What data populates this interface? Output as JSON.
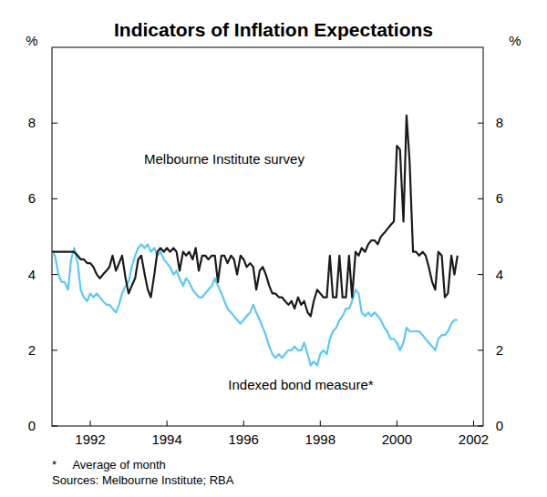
{
  "chart_data": {
    "type": "line",
    "title": "Indicators of Inflation Expectations",
    "ylabel": "%",
    "y2label": "%",
    "x": [
      1991.5,
      1991.58,
      1991.67,
      1991.75,
      1991.83,
      1991.92,
      1992,
      1992.08,
      1992.17,
      1992.25,
      1992.33,
      1992.42,
      1992.5,
      1992.58,
      1992.67,
      1992.75,
      1992.83,
      1992.92,
      1993,
      1993.08,
      1993.17,
      1993.25,
      1993.33,
      1993.42,
      1993.5,
      1993.58,
      1993.67,
      1993.75,
      1993.83,
      1993.92,
      1994,
      1994.08,
      1994.17,
      1994.25,
      1994.33,
      1994.42,
      1994.5,
      1994.58,
      1994.67,
      1994.75,
      1994.83,
      1994.92,
      1995,
      1995.08,
      1995.17,
      1995.25,
      1995.33,
      1995.42,
      1995.5,
      1995.58,
      1995.67,
      1995.75,
      1995.83,
      1995.92,
      1996,
      1996.08,
      1996.17,
      1996.25,
      1996.33,
      1996.42,
      1996.5,
      1996.58,
      1996.67,
      1996.75,
      1996.83,
      1996.92,
      1997,
      1997.08,
      1997.17,
      1997.25,
      1997.33,
      1997.42,
      1997.5,
      1997.58,
      1997.67,
      1997.75,
      1997.83,
      1997.92,
      1998,
      1998.08,
      1998.17,
      1998.25,
      1998.33,
      1998.42,
      1998.5,
      1998.58,
      1998.67,
      1998.75,
      1998.83,
      1998.92,
      1999,
      1999.08,
      1999.17,
      1999.25,
      1999.33,
      1999.42,
      1999.5,
      1999.58,
      1999.67,
      1999.75,
      1999.83,
      1999.92,
      2000,
      2000.08,
      2000.17,
      2000.25,
      2000.33,
      2000.42,
      2000.5,
      2000.58,
      2000.67,
      2000.75,
      2000.83,
      2000.92,
      2001,
      2001.08,
      2001.17,
      2001.25,
      2001.33,
      2001.42,
      2001.5,
      2001.58,
      2001.67,
      2001.75,
      2001.83,
      2001.92,
      2002,
      2002.08
    ],
    "series": [
      {
        "name": "Melbourne Institute survey",
        "color": "#1a1a1a",
        "values": [
          4.6,
          4.6,
          4.6,
          4.6,
          4.6,
          4.6,
          4.6,
          4.6,
          4.5,
          4.4,
          4.4,
          4.3,
          4.3,
          4.2,
          4.0,
          3.9,
          4.0,
          4.1,
          4.2,
          4.5,
          4.1,
          4.3,
          4.5,
          3.9,
          3.5,
          3.7,
          3.9,
          4.4,
          4.5,
          4.0,
          3.6,
          3.4,
          4.0,
          4.6,
          4.7,
          4.6,
          4.7,
          4.6,
          4.7,
          4.6,
          4.1,
          4.6,
          4.5,
          4.6,
          4.4,
          4.7,
          4.1,
          4.5,
          4.5,
          4.4,
          4.5,
          4.5,
          3.8,
          4.5,
          4.5,
          4.3,
          4.5,
          4.4,
          4.0,
          4.5,
          4.4,
          4.2,
          4.3,
          4.2,
          3.6,
          4.1,
          4.2,
          4.0,
          3.7,
          3.5,
          3.5,
          3.4,
          3.4,
          3.3,
          3.2,
          3.3,
          3.1,
          3.4,
          3.2,
          3.3,
          3.0,
          2.9,
          3.3,
          3.6,
          3.5,
          3.4,
          3.4,
          4.5,
          3.4,
          3.4,
          4.5,
          3.4,
          3.4,
          4.5,
          3.4,
          4.6,
          4.5,
          4.7,
          4.6,
          4.8,
          4.9,
          4.9,
          4.8,
          5.0,
          5.1,
          5.2,
          5.3,
          5.4,
          7.4,
          7.3,
          5.4,
          8.2,
          7.0,
          4.6,
          4.6,
          4.5,
          4.6,
          4.5,
          4.2,
          3.8,
          3.6,
          4.6,
          4.5,
          3.4,
          3.5,
          4.5,
          4.0,
          4.5
        ]
      },
      {
        "name": "Indexed bond measure*",
        "color": "#5ec8f0",
        "values": [
          4.6,
          4.5,
          4.0,
          3.8,
          3.8,
          3.6,
          4.4,
          4.7,
          4.3,
          3.6,
          3.4,
          3.3,
          3.5,
          3.4,
          3.5,
          3.4,
          3.3,
          3.2,
          3.2,
          3.1,
          3.0,
          3.2,
          3.5,
          3.7,
          3.8,
          4.2,
          4.5,
          4.7,
          4.8,
          4.7,
          4.8,
          4.6,
          4.7,
          4.5,
          4.6,
          4.4,
          4.3,
          4.2,
          4.0,
          4.1,
          3.9,
          3.7,
          3.9,
          3.8,
          3.6,
          3.5,
          3.4,
          3.4,
          3.5,
          3.6,
          3.7,
          3.9,
          3.7,
          3.5,
          3.3,
          3.1,
          3.0,
          2.9,
          2.8,
          2.7,
          2.8,
          2.9,
          3.0,
          3.2,
          3.0,
          2.8,
          2.6,
          2.4,
          2.1,
          1.9,
          1.8,
          1.9,
          1.8,
          1.9,
          2.0,
          2.0,
          2.1,
          2.0,
          2.0,
          2.2,
          1.9,
          1.6,
          1.7,
          1.6,
          1.9,
          2.0,
          1.9,
          2.3,
          2.5,
          2.6,
          2.8,
          2.9,
          3.1,
          3.1,
          3.3,
          3.6,
          3.5,
          3.0,
          2.9,
          3.0,
          2.9,
          3.0,
          2.9,
          2.8,
          2.6,
          2.5,
          2.3,
          2.3,
          2.2,
          2.0,
          2.2,
          2.6,
          2.5,
          2.5,
          2.5,
          2.5,
          2.4,
          2.3,
          2.2,
          2.1,
          2.0,
          2.3,
          2.4,
          2.4,
          2.5,
          2.7,
          2.8,
          2.8
        ]
      }
    ],
    "xlim": [
      1991.5,
      2002.75
    ],
    "xticks": [
      {
        "value": 1992.5,
        "label": "1992"
      },
      {
        "value": 1994.5,
        "label": "1994"
      },
      {
        "value": 1996.5,
        "label": "1996"
      },
      {
        "value": 1998.5,
        "label": "1998"
      },
      {
        "value": 2000.5,
        "label": "2000"
      },
      {
        "value": 2002.5,
        "label": "2002"
      }
    ],
    "ylim": [
      0,
      10
    ],
    "yticks": [
      0,
      2,
      4,
      6,
      8
    ],
    "y2lim": [
      0,
      10
    ],
    "y2ticks": [
      0,
      2,
      4,
      6,
      8
    ],
    "grid": false,
    "notes": [
      "*     Average of month",
      "Sources: Melbourne Institute; RBA"
    ]
  }
}
